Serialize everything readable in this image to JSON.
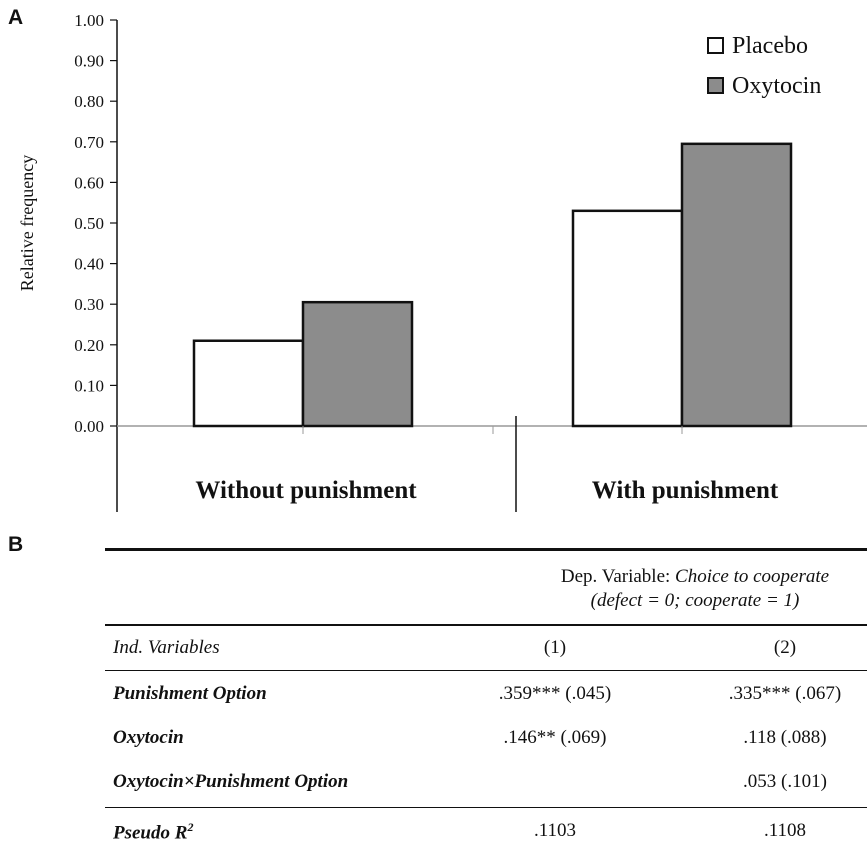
{
  "panel_a_letter": "A",
  "panel_b_letter": "B",
  "chart_data": {
    "type": "bar",
    "categories": [
      "Without punishment",
      "With punishment"
    ],
    "series": [
      {
        "name": "Placebo",
        "values": [
          0.21,
          0.53
        ],
        "color": "#ffffff"
      },
      {
        "name": "Oxytocin",
        "values": [
          0.305,
          0.695
        ],
        "color": "#8c8c8c"
      }
    ],
    "ylabel": "Relative frequency",
    "ylim": [
      0,
      1.0
    ],
    "yticks": [
      "0.00",
      "0.10",
      "0.20",
      "0.30",
      "0.40",
      "0.50",
      "0.60",
      "0.70",
      "0.80",
      "0.90",
      "1.00"
    ],
    "legend": "top-right"
  },
  "table": {
    "dep_var_line1_prefix": "Dep. Variable: ",
    "dep_var_line1_italic": "Choice to cooperate",
    "dep_var_line2": "(defect = 0; cooperate = 1)",
    "ind_variables": "Ind. Variables",
    "col1": "(1)",
    "col2": "(2)",
    "rows": [
      {
        "label": "Punishment Option",
        "c1": ".359*** (.045)",
        "c2": ".335*** (.067)"
      },
      {
        "label": "Oxytocin",
        "c1": ".146** (.069)",
        "c2": ".118 (.088)"
      },
      {
        "label": "Oxytocin×Punishment Option",
        "c1": "",
        "c2": ".053 (.101)"
      }
    ],
    "pseudo_label": "Pseudo R",
    "pseudo_sup": "2",
    "pseudo_c1": ".1103",
    "pseudo_c2": ".1108"
  }
}
